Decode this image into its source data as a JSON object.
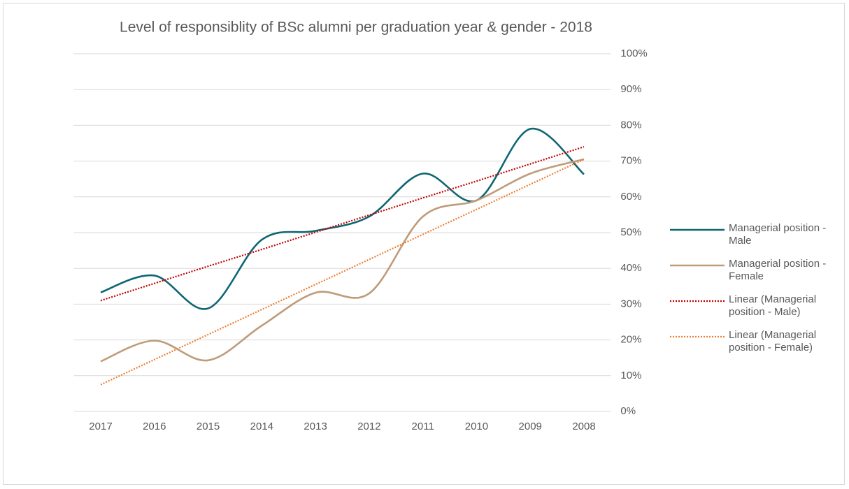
{
  "chart_data": {
    "type": "line",
    "title": "Level of responsiblity of BSc alumni per graduation year & gender - 2018",
    "categories": [
      "2017",
      "2016",
      "2015",
      "2014",
      "2013",
      "2012",
      "2011",
      "2010",
      "2009",
      "2008"
    ],
    "series": [
      {
        "name": "Managerial position - Male",
        "color": "#0f6673",
        "line_style": "solid",
        "smooth": true,
        "values": [
          33.3,
          38,
          28.8,
          48,
          50.5,
          54.5,
          66.5,
          59,
          79,
          66.3
        ]
      },
      {
        "name": "Managerial position - Female",
        "color": "#bf9b7a",
        "line_style": "solid",
        "smooth": true,
        "values": [
          14,
          19.8,
          14.3,
          24,
          33.2,
          33,
          54.5,
          59,
          66.5,
          70.5
        ]
      },
      {
        "name": "Linear (Managerial position - Male)",
        "color": "#c00000",
        "line_style": "dotted",
        "smooth": false,
        "values": [
          31,
          35.8,
          40.6,
          45.3,
          50.1,
          54.9,
          59.7,
          64.4,
          69.2,
          74
        ]
      },
      {
        "name": "Linear (Managerial position - Female)",
        "color": "#ed7d31",
        "line_style": "dotted",
        "smooth": false,
        "values": [
          7.5,
          14.5,
          21.5,
          28.5,
          35.5,
          42.5,
          49.5,
          56.5,
          63.5,
          70.5
        ]
      }
    ],
    "ylim": [
      0,
      100
    ],
    "yticks": [
      {
        "value": 0,
        "label": "0%"
      },
      {
        "value": 10,
        "label": "10%"
      },
      {
        "value": 20,
        "label": "20%"
      },
      {
        "value": 30,
        "label": "30%"
      },
      {
        "value": 40,
        "label": "40%"
      },
      {
        "value": 50,
        "label": "50%"
      },
      {
        "value": 60,
        "label": "60%"
      },
      {
        "value": 70,
        "label": "70%"
      },
      {
        "value": 80,
        "label": "80%"
      },
      {
        "value": 90,
        "label": "90%"
      },
      {
        "value": 100,
        "label": "100%"
      }
    ],
    "grid": true,
    "y_axis_side": "right",
    "legend": "right"
  }
}
